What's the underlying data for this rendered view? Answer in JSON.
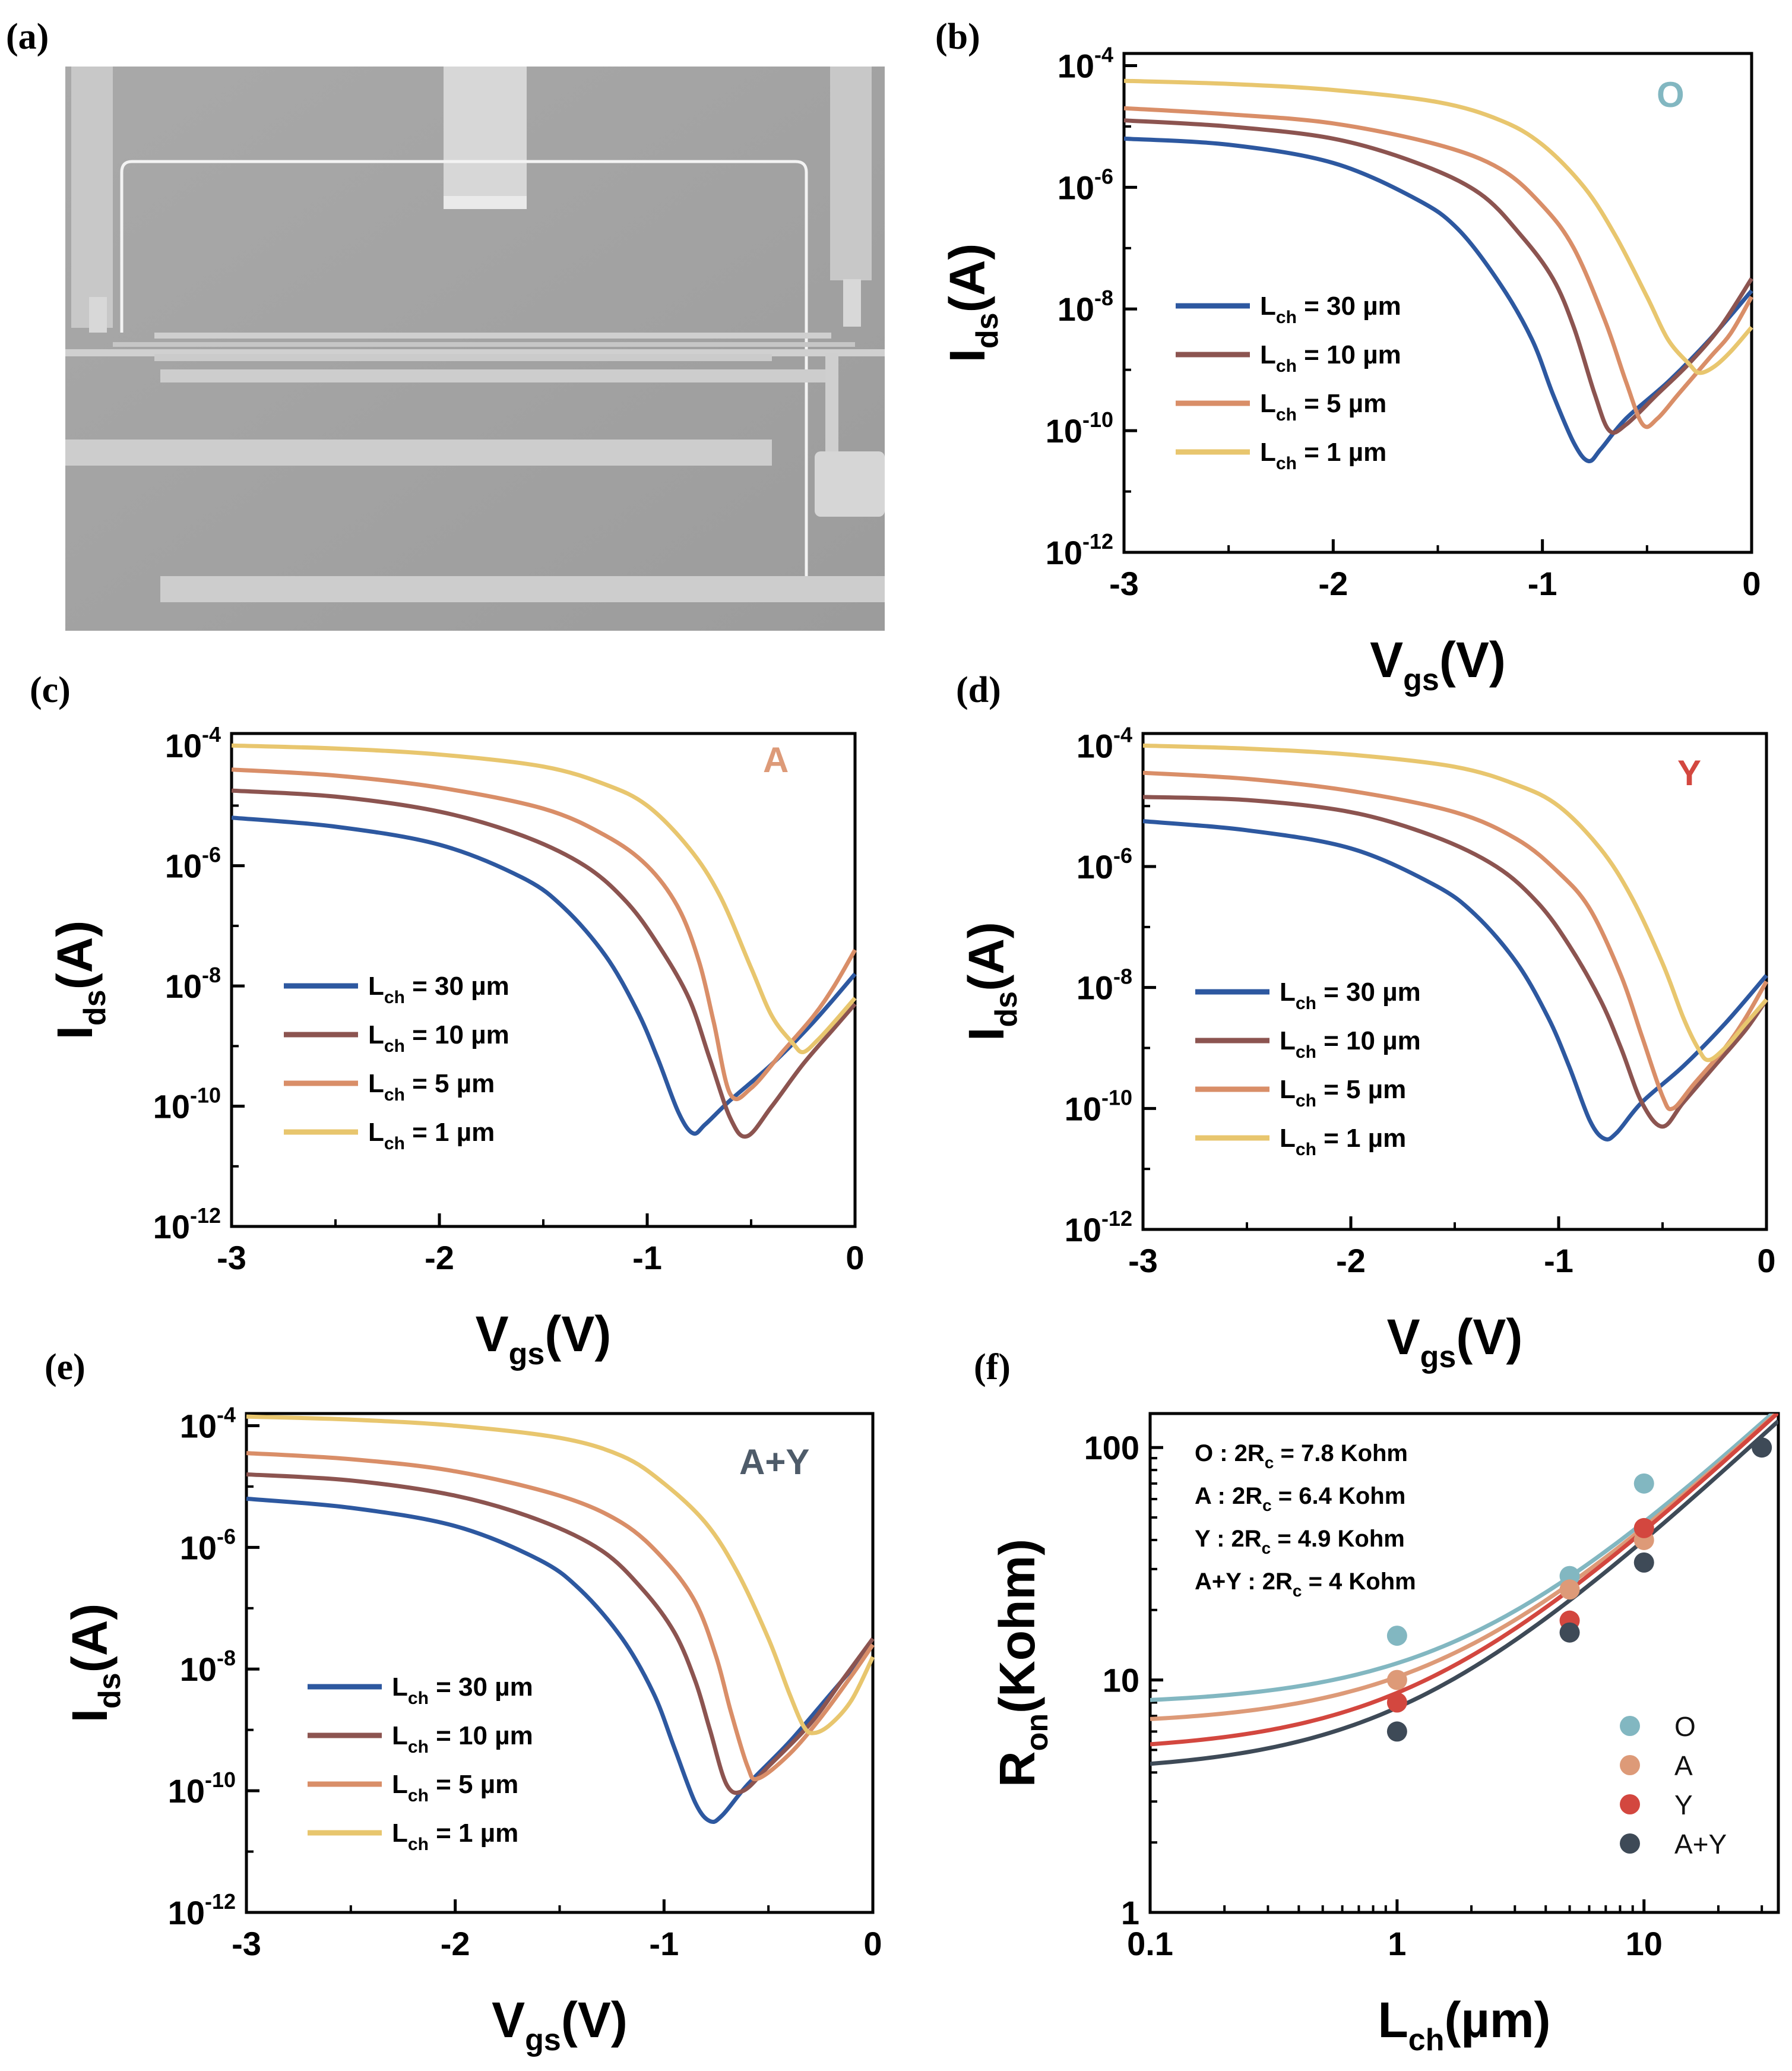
{
  "figure": {
    "panel_labels": [
      "(a)",
      "(b)",
      "(c)",
      "(d)",
      "(e)",
      "(f)"
    ]
  },
  "colors": {
    "L30": "#2d58a0",
    "L10": "#8c5450",
    "L5": "#d98e68",
    "L1": "#e8c66e",
    "O": "#82b7c1",
    "A": "#dd9a78",
    "Y": "#d3473f",
    "AY": "#3e4a57"
  },
  "chart_data": [
    {
      "panel": "(a)",
      "type": "image",
      "description_label": "SEM micrograph"
    },
    {
      "panel": "(b)",
      "type": "line",
      "annotation": "O",
      "annotation_color": "#82b7c1",
      "xlabel_main": "V",
      "xlabel_sub": "gs",
      "xlabel_tail": "(V)",
      "ylabel_main": "I",
      "ylabel_sub": "ds",
      "ylabel_tail": "(A)",
      "xlim": [
        -3,
        0
      ],
      "ylim_log10": [
        -12,
        -3.8
      ],
      "xticks": [
        -3,
        -2,
        -1,
        0
      ],
      "yticks_exp": [
        -4,
        -6,
        -8,
        -10,
        -12
      ],
      "legend": [
        {
          "prefix": "L",
          "sub": "ch",
          "suffix": " = 30 µm",
          "color": "#2d58a0"
        },
        {
          "prefix": "L",
          "sub": "ch",
          "suffix": " = 10 µm",
          "color": "#8c5450"
        },
        {
          "prefix": "L",
          "sub": "ch",
          "suffix": " = 5 µm",
          "color": "#d98e68"
        },
        {
          "prefix": "L",
          "sub": "ch",
          "suffix": " = 1 µm",
          "color": "#e8c66e"
        }
      ],
      "series": [
        {
          "name": "30",
          "color": "#2d58a0",
          "x": [
            -3,
            -2.5,
            -2,
            -1.6,
            -1.4,
            -1.2,
            -1.05,
            -0.95,
            -0.85,
            -0.78,
            -0.72,
            -0.6,
            -0.4,
            -0.2,
            0
          ],
          "y": [
            -5.2,
            -5.3,
            -5.6,
            -6.2,
            -6.7,
            -7.6,
            -8.5,
            -9.4,
            -10.2,
            -10.5,
            -10.3,
            -9.8,
            -9.2,
            -8.5,
            -7.7
          ]
        },
        {
          "name": "10",
          "color": "#8c5450",
          "x": [
            -3,
            -2.5,
            -2,
            -1.6,
            -1.3,
            -1.1,
            -0.95,
            -0.85,
            -0.75,
            -0.68,
            -0.6,
            -0.45,
            -0.3,
            -0.15,
            0
          ],
          "y": [
            -4.9,
            -5.0,
            -5.2,
            -5.6,
            -6.1,
            -6.8,
            -7.5,
            -8.3,
            -9.4,
            -10.0,
            -9.9,
            -9.4,
            -8.9,
            -8.3,
            -7.5
          ]
        },
        {
          "name": "5",
          "color": "#d98e68",
          "x": [
            -3,
            -2.5,
            -2,
            -1.5,
            -1.2,
            -1,
            -0.85,
            -0.7,
            -0.6,
            -0.52,
            -0.45,
            -0.35,
            -0.2,
            -0.1,
            0
          ],
          "y": [
            -4.7,
            -4.8,
            -4.95,
            -5.3,
            -5.7,
            -6.3,
            -7.0,
            -8.2,
            -9.2,
            -9.9,
            -9.8,
            -9.4,
            -8.8,
            -8.4,
            -7.8
          ]
        },
        {
          "name": "1",
          "color": "#e8c66e",
          "x": [
            -3,
            -2.5,
            -2,
            -1.5,
            -1.2,
            -1,
            -0.8,
            -0.65,
            -0.5,
            -0.4,
            -0.3,
            -0.25,
            -0.18,
            -0.1,
            0
          ],
          "y": [
            -4.25,
            -4.3,
            -4.4,
            -4.6,
            -4.9,
            -5.3,
            -6.0,
            -6.8,
            -7.8,
            -8.5,
            -8.9,
            -9.05,
            -8.95,
            -8.7,
            -8.3
          ]
        }
      ]
    },
    {
      "panel": "(c)",
      "type": "line",
      "annotation": "A",
      "annotation_color": "#dd9a78",
      "xlabel_main": "V",
      "xlabel_sub": "gs",
      "xlabel_tail": "(V)",
      "ylabel_main": "I",
      "ylabel_sub": "ds",
      "ylabel_tail": "(A)",
      "xlim": [
        -3,
        0
      ],
      "ylim_log10": [
        -12,
        -3.8
      ],
      "xticks": [
        -3,
        -2,
        -1,
        0
      ],
      "yticks_exp": [
        -4,
        -6,
        -8,
        -10,
        -12
      ],
      "legend": [
        {
          "prefix": "L",
          "sub": "ch",
          "suffix": " = 30 µm",
          "color": "#2d58a0"
        },
        {
          "prefix": "L",
          "sub": "ch",
          "suffix": " = 10 µm",
          "color": "#8c5450"
        },
        {
          "prefix": "L",
          "sub": "ch",
          "suffix": " = 5 µm",
          "color": "#d98e68"
        },
        {
          "prefix": "L",
          "sub": "ch",
          "suffix": " = 1 µm",
          "color": "#e8c66e"
        }
      ],
      "series": [
        {
          "name": "30",
          "color": "#2d58a0",
          "x": [
            -3,
            -2.5,
            -2,
            -1.6,
            -1.4,
            -1.2,
            -1.05,
            -0.95,
            -0.85,
            -0.78,
            -0.72,
            -0.6,
            -0.4,
            -0.2,
            0
          ],
          "y": [
            -5.2,
            -5.35,
            -5.65,
            -6.2,
            -6.7,
            -7.5,
            -8.4,
            -9.2,
            -10.1,
            -10.45,
            -10.3,
            -9.9,
            -9.3,
            -8.6,
            -7.8
          ]
        },
        {
          "name": "10",
          "color": "#8c5450",
          "x": [
            -3,
            -2.5,
            -2,
            -1.6,
            -1.3,
            -1.1,
            -0.95,
            -0.8,
            -0.7,
            -0.6,
            -0.52,
            -0.4,
            -0.25,
            -0.1,
            0
          ],
          "y": [
            -4.75,
            -4.85,
            -5.1,
            -5.5,
            -6.0,
            -6.6,
            -7.3,
            -8.2,
            -9.2,
            -10.2,
            -10.5,
            -10.0,
            -9.3,
            -8.7,
            -8.3
          ]
        },
        {
          "name": "5",
          "color": "#d98e68",
          "x": [
            -3,
            -2.5,
            -2,
            -1.5,
            -1.2,
            -1,
            -0.85,
            -0.75,
            -0.68,
            -0.6,
            -0.5,
            -0.35,
            -0.2,
            -0.1,
            0
          ],
          "y": [
            -4.4,
            -4.5,
            -4.7,
            -5.05,
            -5.5,
            -6.0,
            -6.7,
            -7.6,
            -8.6,
            -9.8,
            -9.7,
            -9.1,
            -8.5,
            -8.0,
            -7.4
          ]
        },
        {
          "name": "1",
          "color": "#e8c66e",
          "x": [
            -3,
            -2.5,
            -2,
            -1.5,
            -1.2,
            -1,
            -0.8,
            -0.65,
            -0.5,
            -0.4,
            -0.3,
            -0.25,
            -0.18,
            -0.1,
            0
          ],
          "y": [
            -4.0,
            -4.05,
            -4.15,
            -4.35,
            -4.65,
            -5.0,
            -5.7,
            -6.5,
            -7.7,
            -8.5,
            -8.95,
            -9.1,
            -8.9,
            -8.6,
            -8.2
          ]
        }
      ]
    },
    {
      "panel": "(d)",
      "type": "line",
      "annotation": "Y",
      "annotation_color": "#d3473f",
      "xlabel_main": "V",
      "xlabel_sub": "gs",
      "xlabel_tail": "(V)",
      "ylabel_main": "I",
      "ylabel_sub": "ds",
      "ylabel_tail": "(A)",
      "xlim": [
        -3,
        0
      ],
      "ylim_log10": [
        -12,
        -3.8
      ],
      "xticks": [
        -3,
        -2,
        -1,
        0
      ],
      "yticks_exp": [
        -4,
        -6,
        -8,
        -10,
        -12
      ],
      "legend": [
        {
          "prefix": "L",
          "sub": "ch",
          "suffix": " = 30 µm",
          "color": "#2d58a0"
        },
        {
          "prefix": "L",
          "sub": "ch",
          "suffix": " = 10 µm",
          "color": "#8c5450"
        },
        {
          "prefix": "L",
          "sub": "ch",
          "suffix": " = 5 µm",
          "color": "#d98e68"
        },
        {
          "prefix": "L",
          "sub": "ch",
          "suffix": " = 1 µm",
          "color": "#e8c66e"
        }
      ],
      "series": [
        {
          "name": "30",
          "color": "#2d58a0",
          "x": [
            -3,
            -2.5,
            -2,
            -1.6,
            -1.4,
            -1.2,
            -1.05,
            -0.95,
            -0.85,
            -0.78,
            -0.72,
            -0.6,
            -0.4,
            -0.2,
            0
          ],
          "y": [
            -5.25,
            -5.4,
            -5.7,
            -6.3,
            -6.8,
            -7.6,
            -8.5,
            -9.3,
            -10.2,
            -10.5,
            -10.4,
            -9.9,
            -9.3,
            -8.6,
            -7.8
          ]
        },
        {
          "name": "10",
          "color": "#8c5450",
          "x": [
            -3,
            -2.5,
            -2,
            -1.6,
            -1.3,
            -1.1,
            -0.95,
            -0.8,
            -0.7,
            -0.6,
            -0.5,
            -0.4,
            -0.25,
            -0.1,
            0
          ],
          "y": [
            -4.85,
            -4.9,
            -5.1,
            -5.5,
            -6.0,
            -6.6,
            -7.3,
            -8.2,
            -9.0,
            -9.9,
            -10.3,
            -9.9,
            -9.3,
            -8.7,
            -8.2
          ]
        },
        {
          "name": "5",
          "color": "#d98e68",
          "x": [
            -3,
            -2.5,
            -2,
            -1.5,
            -1.2,
            -1,
            -0.85,
            -0.7,
            -0.6,
            -0.5,
            -0.45,
            -0.35,
            -0.2,
            -0.1,
            0
          ],
          "y": [
            -4.45,
            -4.55,
            -4.75,
            -5.1,
            -5.55,
            -6.1,
            -6.7,
            -7.8,
            -8.8,
            -9.8,
            -10.0,
            -9.6,
            -9.0,
            -8.5,
            -7.9
          ]
        },
        {
          "name": "1",
          "color": "#e8c66e",
          "x": [
            -3,
            -2.5,
            -2,
            -1.5,
            -1.2,
            -1,
            -0.8,
            -0.65,
            -0.5,
            -0.4,
            -0.33,
            -0.28,
            -0.2,
            -0.1,
            0
          ],
          "y": [
            -4.0,
            -4.05,
            -4.15,
            -4.35,
            -4.65,
            -5.0,
            -5.7,
            -6.5,
            -7.6,
            -8.5,
            -9.0,
            -9.2,
            -9.0,
            -8.6,
            -8.2
          ]
        }
      ]
    },
    {
      "panel": "(e)",
      "type": "line",
      "annotation": "A+Y",
      "annotation_color": "#4e5b69",
      "xlabel_main": "V",
      "xlabel_sub": "gs",
      "xlabel_tail": "(V)",
      "ylabel_main": "I",
      "ylabel_sub": "ds",
      "ylabel_tail": "(A)",
      "xlim": [
        -3,
        0
      ],
      "ylim_log10": [
        -12,
        -3.8
      ],
      "xticks": [
        -3,
        -2,
        -1,
        0
      ],
      "yticks_exp": [
        -4,
        -6,
        -8,
        -10,
        -12
      ],
      "legend": [
        {
          "prefix": "L",
          "sub": "ch",
          "suffix": " = 30 µm",
          "color": "#2d58a0"
        },
        {
          "prefix": "L",
          "sub": "ch",
          "suffix": " = 10 µm",
          "color": "#8c5450"
        },
        {
          "prefix": "L",
          "sub": "ch",
          "suffix": " = 5 µm",
          "color": "#d98e68"
        },
        {
          "prefix": "L",
          "sub": "ch",
          "suffix": " = 1 µm",
          "color": "#e8c66e"
        }
      ],
      "series": [
        {
          "name": "30",
          "color": "#2d58a0",
          "x": [
            -3,
            -2.5,
            -2,
            -1.6,
            -1.4,
            -1.2,
            -1.05,
            -0.95,
            -0.85,
            -0.78,
            -0.72,
            -0.6,
            -0.4,
            -0.2,
            0
          ],
          "y": [
            -5.2,
            -5.35,
            -5.65,
            -6.2,
            -6.7,
            -7.5,
            -8.4,
            -9.3,
            -10.2,
            -10.5,
            -10.4,
            -9.9,
            -9.2,
            -8.4,
            -7.6
          ]
        },
        {
          "name": "10",
          "color": "#8c5450",
          "x": [
            -3,
            -2.5,
            -2,
            -1.6,
            -1.3,
            -1.1,
            -0.95,
            -0.85,
            -0.78,
            -0.7,
            -0.62,
            -0.5,
            -0.3,
            -0.15,
            0
          ],
          "y": [
            -4.8,
            -4.9,
            -5.15,
            -5.55,
            -6.05,
            -6.7,
            -7.4,
            -8.2,
            -9.0,
            -9.9,
            -10.0,
            -9.6,
            -8.9,
            -8.2,
            -7.5
          ]
        },
        {
          "name": "5",
          "color": "#d98e68",
          "x": [
            -3,
            -2.5,
            -2,
            -1.5,
            -1.2,
            -1,
            -0.85,
            -0.75,
            -0.68,
            -0.6,
            -0.55,
            -0.4,
            -0.25,
            -0.1,
            0
          ],
          "y": [
            -4.45,
            -4.55,
            -4.75,
            -5.15,
            -5.6,
            -6.2,
            -6.9,
            -7.8,
            -8.7,
            -9.6,
            -9.8,
            -9.4,
            -8.8,
            -8.1,
            -7.6
          ]
        },
        {
          "name": "1",
          "color": "#e8c66e",
          "x": [
            -3,
            -2.5,
            -2,
            -1.5,
            -1.2,
            -1,
            -0.8,
            -0.65,
            -0.5,
            -0.4,
            -0.33,
            -0.28,
            -0.2,
            -0.1,
            0
          ],
          "y": [
            -3.85,
            -3.9,
            -4.0,
            -4.2,
            -4.5,
            -4.95,
            -5.6,
            -6.4,
            -7.5,
            -8.4,
            -8.95,
            -9.05,
            -8.9,
            -8.5,
            -7.8
          ]
        }
      ]
    },
    {
      "panel": "(f)",
      "type": "scatter",
      "xlabel_main": "L",
      "xlabel_sub": "ch",
      "xlabel_tail": "(µm)",
      "ylabel_main": "R",
      "ylabel_sub": "on",
      "ylabel_tail": "(Kohm)",
      "xscale": "log",
      "yscale": "log",
      "xlim": [
        0.1,
        35
      ],
      "ylim": [
        1,
        140
      ],
      "xtick_labels": [
        "0.1",
        "1",
        "10"
      ],
      "ytick_labels": [
        "1",
        "10",
        "100"
      ],
      "annotations": [
        {
          "prefix": "O : 2R",
          "sub": "c",
          "suffix": " = 7.8 Kohm"
        },
        {
          "prefix": "A : 2R",
          "sub": "c",
          "suffix": " = 6.4 Kohm"
        },
        {
          "prefix": "Y : 2R",
          "sub": "c",
          "suffix": " = 4.9 Kohm"
        },
        {
          "prefix": "A+Y : 2R",
          "sub": "c",
          "suffix": " = 4 Kohm"
        }
      ],
      "legend": [
        {
          "label": "O",
          "color": "#82b7c1"
        },
        {
          "label": "A",
          "color": "#dd9a78"
        },
        {
          "label": "Y",
          "color": "#d3473f"
        },
        {
          "label": "A+Y",
          "color": "#3e4a57"
        }
      ],
      "series": [
        {
          "name": "O",
          "color": "#82b7c1",
          "x": [
            1,
            5,
            10
          ],
          "y": [
            15.5,
            28,
            70
          ],
          "fit_2Rc": 7.8,
          "fit_slope": 4.0
        },
        {
          "name": "A",
          "color": "#dd9a78",
          "x": [
            1,
            5,
            10
          ],
          "y": [
            10,
            24.5,
            40
          ],
          "fit_2Rc": 6.4,
          "fit_slope": 3.9
        },
        {
          "name": "Y",
          "color": "#d3473f",
          "x": [
            1,
            5,
            10
          ],
          "y": [
            8,
            18,
            45
          ],
          "fit_2Rc": 4.9,
          "fit_slope": 3.9
        },
        {
          "name": "A+Y",
          "color": "#3e4a57",
          "x": [
            1,
            5,
            10,
            30
          ],
          "y": [
            6,
            16,
            32,
            100
          ],
          "fit_2Rc": 4.0,
          "fit_slope": 3.6
        }
      ]
    }
  ]
}
